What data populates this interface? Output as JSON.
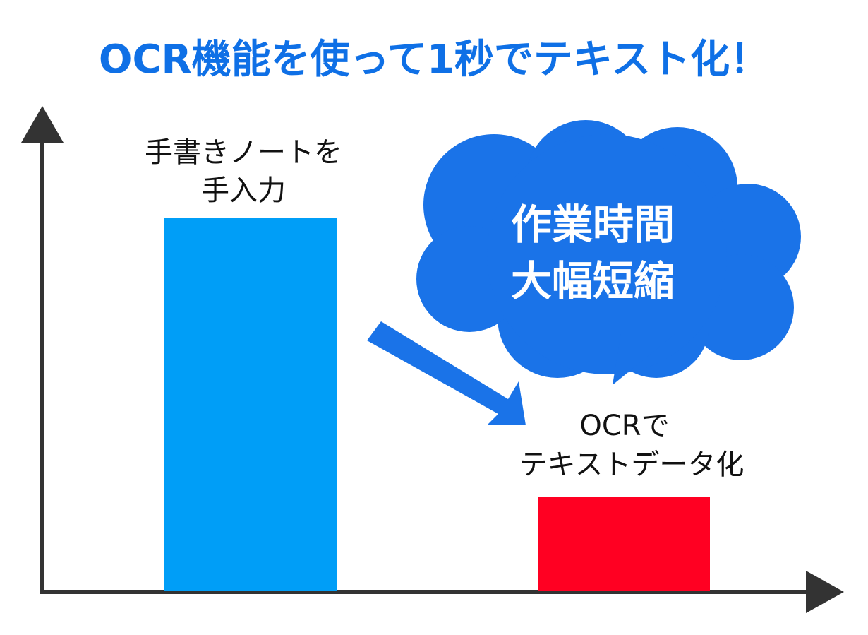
{
  "title": "OCR機能を使って1秒でテキスト化！",
  "bars": [
    {
      "label": [
        "手書きノートを",
        "手入力"
      ]
    },
    {
      "label": [
        "OCRで",
        "テキストデータ化"
      ]
    }
  ],
  "callout": [
    "作業時間",
    "大幅短縮"
  ]
}
